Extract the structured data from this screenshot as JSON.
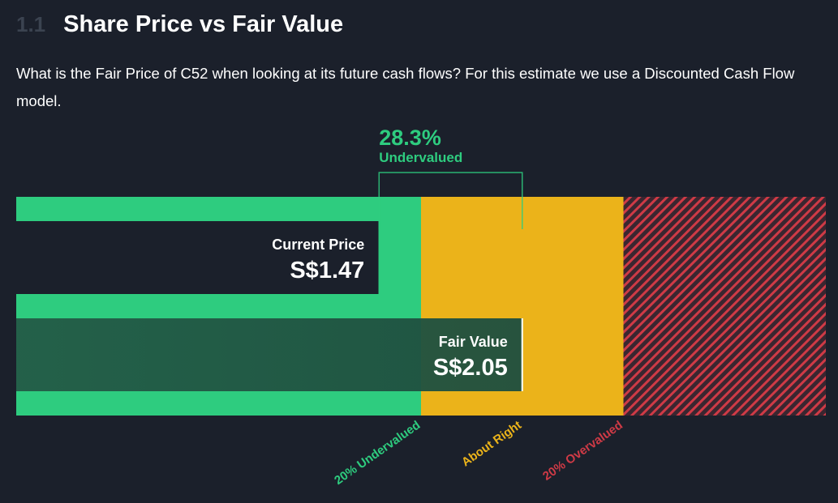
{
  "header": {
    "section_number": "1.1",
    "title": "Share Price vs Fair Value",
    "description": "What is the Fair Price of C52 when looking at its future cash flows? For this estimate we use a Discounted Cash Flow model."
  },
  "chart_data": {
    "type": "bar",
    "title": "Share Price vs Fair Value",
    "currency": "S$",
    "current_price": 1.47,
    "current_price_label": "Current Price",
    "current_price_text": "S$1.47",
    "fair_value": 2.05,
    "fair_value_label": "Fair Value",
    "fair_value_text": "S$2.05",
    "discount_text": "28.3%",
    "discount_label": "Undervalued",
    "zones": [
      {
        "name": "20% Undervalued",
        "from_ratio": 0.0,
        "to_ratio": 0.8,
        "color": "#2ecc7f"
      },
      {
        "name": "About Right",
        "from_ratio": 0.8,
        "to_ratio": 1.2,
        "color": "#ebb31a"
      },
      {
        "name": "20% Overvalued",
        "from_ratio": 1.2,
        "to_ratio": 1.6,
        "color": "#cf3a46"
      }
    ]
  },
  "colors": {
    "background": "#1b202b",
    "undervalued": "#2ecc7f",
    "about_right": "#ebb31a",
    "overvalued": "#cf3a46",
    "fair_bar": "#1f5140"
  }
}
